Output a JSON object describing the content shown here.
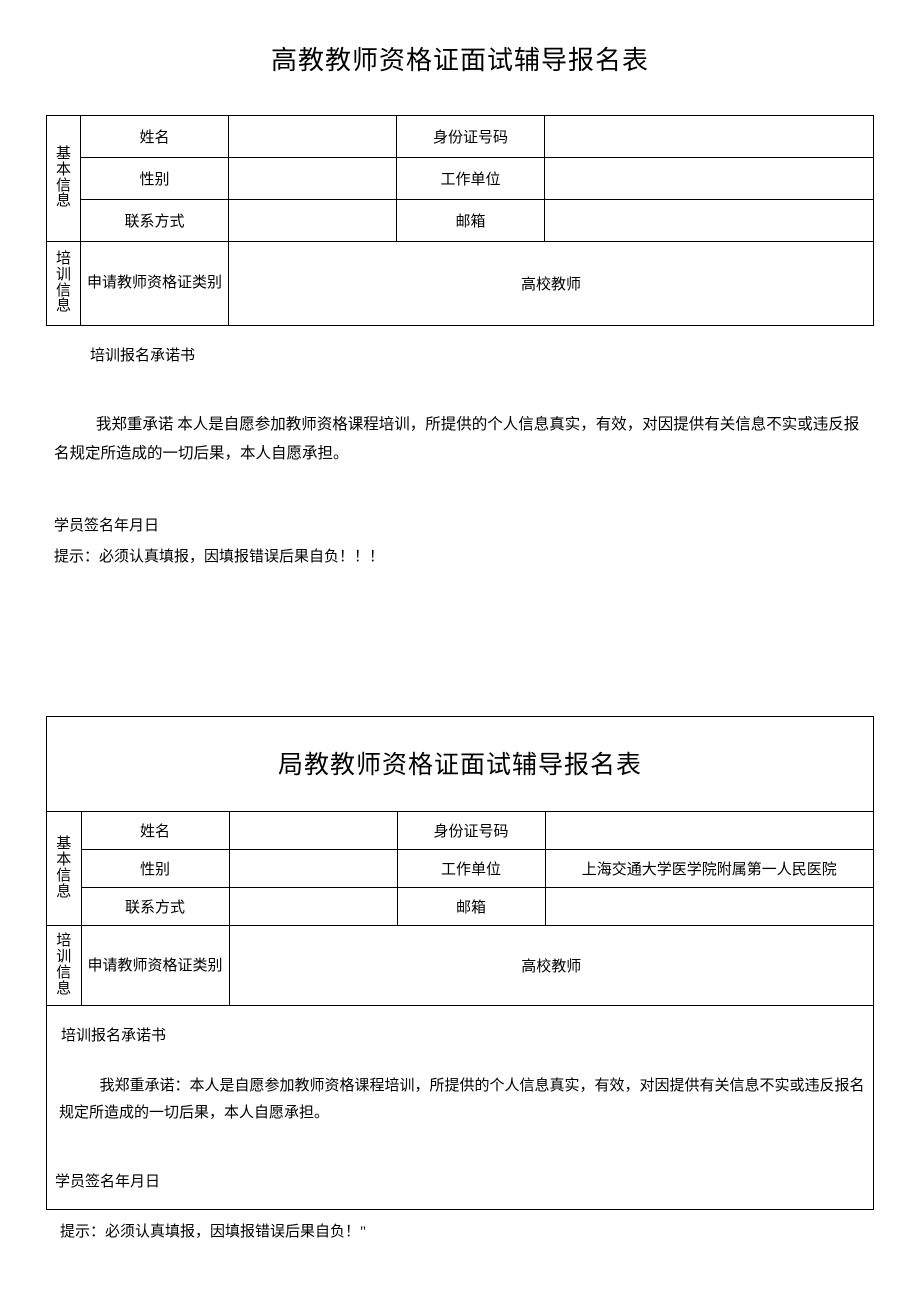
{
  "form1": {
    "title": "高教教师资格证面试辅导报名表",
    "section_basic": "基本信息",
    "section_training": "培训信息",
    "labels": {
      "name": "姓名",
      "id_number": "身份证号码",
      "gender": "性别",
      "work_unit": "工作单位",
      "contact": "联系方式",
      "email": "邮箱",
      "cert_type": "申请教师资格证类别"
    },
    "values": {
      "name": "",
      "id_number": "",
      "gender": "",
      "work_unit": "",
      "contact": "",
      "email": "",
      "cert_type": "高校教师"
    },
    "pledge_title": "培训报名承诺书",
    "pledge_body": "我郑重承诺 本人是自愿参加教师资格课程培训，所提供的个人信息真实，有效，对因提供有关信息不实或违反报名规定所造成的一切后果，本人自愿承担。",
    "sign_line": "学员签名年月日",
    "tip": "提示：必须认真填报，因填报错误后果自负！！！"
  },
  "form2": {
    "title": "局教教师资格证面试辅导报名表",
    "section_basic": "基本信息",
    "section_training": "培训信息",
    "labels": {
      "name": "姓名",
      "id_number": "身份证号码",
      "gender": "性别",
      "work_unit": "工作单位",
      "contact": "联系方式",
      "email": "邮箱",
      "cert_type": "申请教师资格证类别"
    },
    "values": {
      "name": "",
      "id_number": "",
      "gender": "",
      "work_unit": "上海交通大学医学院附属第一人民医院",
      "contact": "",
      "email": "",
      "cert_type": "高校教师"
    },
    "pledge_title": "培训报名承诺书",
    "pledge_body": "我郑重承诺：本人是自愿参加教师资格课程培训，所提供的个人信息真实，有效，对因提供有关信息不实或违反报名规定所造成的一切后果，本人自愿承担。",
    "sign_line": "学员签名年月日",
    "tip": "提示：必须认真填报，因填报错误后果自负！\""
  },
  "colors": {
    "text": "#000000",
    "border": "#000000",
    "background": "#ffffff"
  }
}
